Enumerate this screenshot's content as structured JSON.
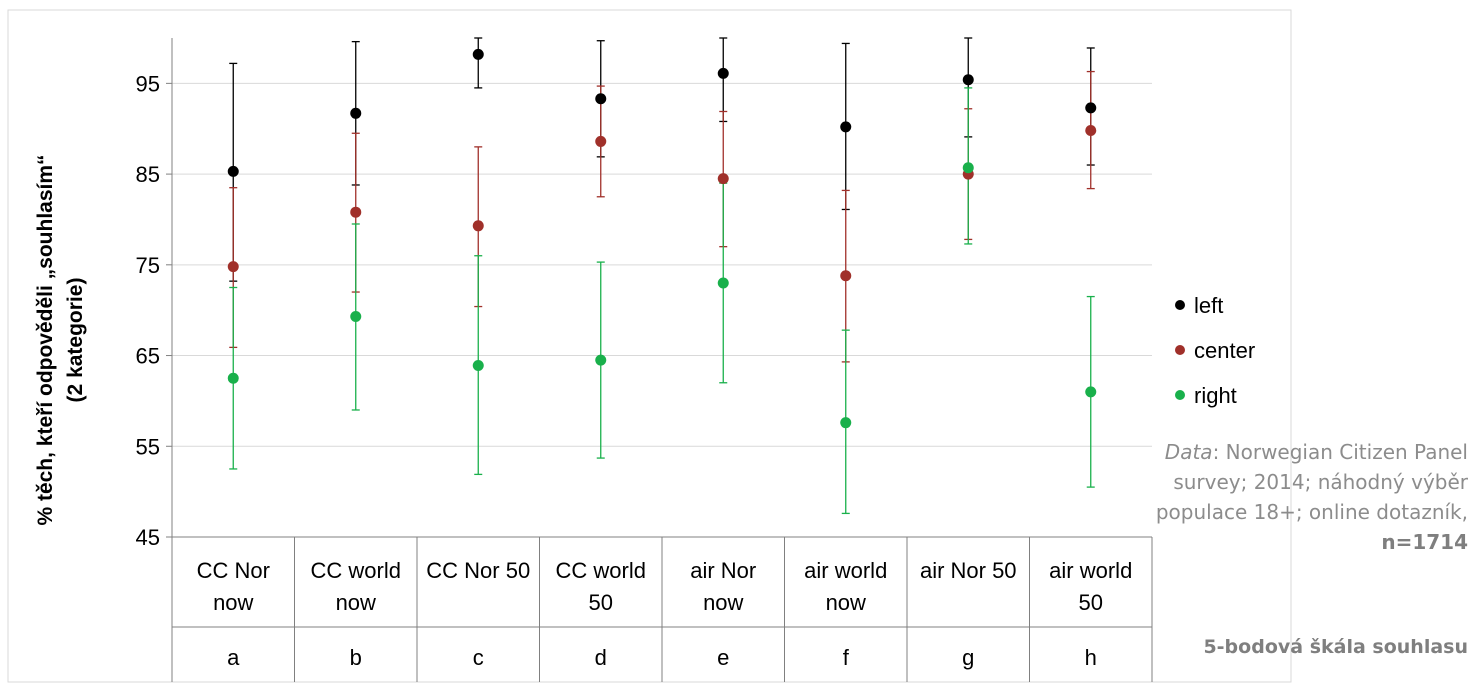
{
  "chart_data": {
    "type": "scatter",
    "ylabel": "% těch, kteří odpověděli „souhlasím“",
    "ylabel_2": "(2 kategorie)",
    "ylim": [
      45,
      100
    ],
    "yticks": [
      45,
      55,
      65,
      75,
      85,
      95
    ],
    "grid": true,
    "legend_position": "right",
    "categories": [
      {
        "label_1": "CC Nor",
        "label_2": "now",
        "letter": "a"
      },
      {
        "label_1": "CC world",
        "label_2": "now",
        "letter": "b"
      },
      {
        "label_1": "CC Nor 50",
        "label_2": "",
        "letter": "c"
      },
      {
        "label_1": "CC world",
        "label_2": "50",
        "letter": "d"
      },
      {
        "label_1": "air Nor",
        "label_2": "now",
        "letter": "e"
      },
      {
        "label_1": "air world",
        "label_2": "now",
        "letter": "f"
      },
      {
        "label_1": "air Nor 50",
        "label_2": "",
        "letter": "g"
      },
      {
        "label_1": "air world",
        "label_2": "50",
        "letter": "h"
      }
    ],
    "series": [
      {
        "name": "left",
        "color": "#000000",
        "values": [
          85.3,
          91.7,
          98.2,
          93.3,
          96.1,
          90.2,
          95.4,
          92.3
        ],
        "lower": [
          73.2,
          83.8,
          94.5,
          86.9,
          90.8,
          81.1,
          89.1,
          86.0
        ],
        "upper": [
          97.2,
          99.6,
          100.0,
          99.7,
          100.0,
          99.4,
          100.0,
          98.9
        ]
      },
      {
        "name": "center",
        "color": "#a0302a",
        "values": [
          74.8,
          80.8,
          79.3,
          88.6,
          84.5,
          73.8,
          85.0,
          89.8
        ],
        "lower": [
          65.9,
          72.0,
          70.4,
          82.5,
          77.0,
          64.3,
          77.8,
          83.4
        ],
        "upper": [
          83.5,
          89.5,
          88.0,
          94.7,
          91.9,
          83.2,
          92.2,
          96.3
        ]
      },
      {
        "name": "right",
        "color": "#19b04b",
        "values": [
          62.5,
          69.3,
          63.9,
          64.5,
          73.0,
          57.6,
          85.7,
          61.0
        ],
        "lower": [
          52.5,
          59.0,
          51.9,
          53.7,
          62.0,
          47.6,
          77.3,
          50.5
        ],
        "upper": [
          72.5,
          79.5,
          76.0,
          75.3,
          84.0,
          67.8,
          94.5,
          71.5
        ]
      }
    ]
  },
  "notes": {
    "source_label": "Data",
    "source_text": ": Norwegian Citizen Panel survey; 2014; náhodný výběr populace 18+; online dotazník,",
    "n_text": "n=1714",
    "scale_text": "5-bodová škála souhlasu"
  }
}
